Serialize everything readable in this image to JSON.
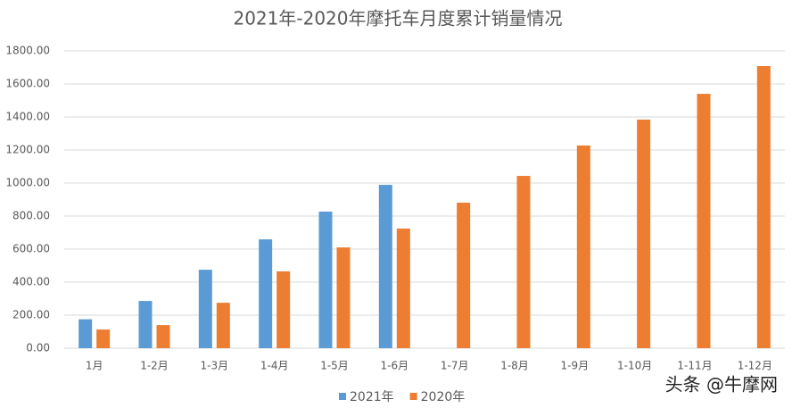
{
  "chart_data": {
    "type": "bar",
    "title": "2021年-2020年摩托车月度累计销量情况",
    "categories": [
      "1月",
      "1-2月",
      "1-3月",
      "1-4月",
      "1-5月",
      "1-6月",
      "1-7月",
      "1-8月",
      "1-9月",
      "1-10月",
      "1-11月",
      "1-12月"
    ],
    "series": [
      {
        "name": "2021年",
        "color": "#5b9bd5",
        "values": [
          175,
          286,
          475,
          659,
          827,
          989,
          null,
          null,
          null,
          null,
          null,
          null
        ]
      },
      {
        "name": "2020年",
        "color": "#ed7d31",
        "values": [
          113,
          140,
          275,
          465,
          610,
          724,
          881,
          1043,
          1227,
          1384,
          1540,
          1708
        ]
      }
    ],
    "ylim": [
      0,
      1800
    ],
    "yticks": [
      {
        "value": 0,
        "label": "0.00"
      },
      {
        "value": 200,
        "label": "200.00"
      },
      {
        "value": 400,
        "label": "400.00"
      },
      {
        "value": 600,
        "label": "600.00"
      },
      {
        "value": 800,
        "label": "800.00"
      },
      {
        "value": 1000,
        "label": "1000.00"
      },
      {
        "value": 1200,
        "label": "1200.00"
      },
      {
        "value": 1400,
        "label": "1400.00"
      },
      {
        "value": 1600,
        "label": "1600.00"
      },
      {
        "value": 1800,
        "label": "1800.00"
      }
    ],
    "grid": true,
    "legend": "bottom",
    "watermark": "头条 @牛摩网"
  }
}
